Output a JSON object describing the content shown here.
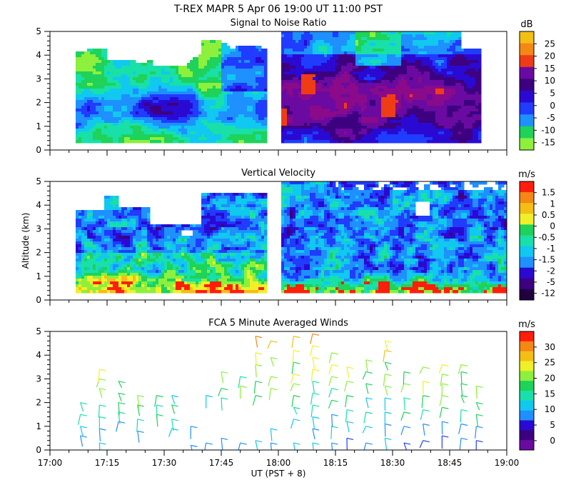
{
  "figure": {
    "title": "T-REX  MAPR  5 Apr 06  19:00 UT  11:00  PST",
    "xlabel": "UT  (PST + 8)",
    "ylabel": "Altitude (km)"
  },
  "colors": {
    "scale": [
      "#6a0aa0",
      "#3d0080",
      "#2a0ad2",
      "#1f3cff",
      "#1e90ff",
      "#10c8f0",
      "#18e0a8",
      "#1ed25a",
      "#8cf03c",
      "#f0f028",
      "#f5be14",
      "#f58714",
      "#f03c14",
      "#ff1e0a",
      "#ffffff"
    ]
  },
  "chart_data": [
    {
      "id": "snr",
      "type": "heatmap",
      "title": "Signal to Noise Ratio",
      "unit": "dB",
      "colorbar_ticks": [
        "25",
        "20",
        "15",
        "10",
        "5",
        "0",
        "-5",
        "-10",
        "-15"
      ],
      "colorbar_colors": [
        "#f5be14",
        "#f58714",
        "#f03c14",
        "#6a0aa0",
        "#3d0080",
        "#2a0ad2",
        "#1f3cff",
        "#1e90ff",
        "#1ed25a",
        "#8cf03c"
      ],
      "x_ticks": [
        "17:00",
        "17:15",
        "17:30",
        "17:45",
        "18:00",
        "18:15",
        "18:30",
        "18:45",
        "19:00"
      ],
      "xlim": [
        0,
        120
      ],
      "ylim": [
        0,
        5
      ],
      "y_ticks": [
        "0",
        "1",
        "2",
        "3",
        "4",
        "5"
      ],
      "data_gap_minutes": [
        57,
        61
      ],
      "data_start_minutes": 7,
      "data_end_minutes": 113
    },
    {
      "id": "vvel",
      "type": "heatmap",
      "title": "Vertical Velocity",
      "unit": "m/s",
      "colorbar_ticks": [
        "1.5",
        "1",
        "0.5",
        "0",
        "-0.5",
        "-1",
        "-1.5",
        "-2",
        "-5",
        "-12"
      ],
      "colorbar_colors": [
        "#ff1e0a",
        "#f58714",
        "#f5be14",
        "#f0f028",
        "#1ed25a",
        "#18e0a8",
        "#10c8f0",
        "#1e90ff",
        "#2a0ad2",
        "#3d0080",
        "#200040"
      ],
      "x_ticks": [
        "17:00",
        "17:15",
        "17:30",
        "17:45",
        "18:00",
        "18:15",
        "18:30",
        "18:45",
        "19:00"
      ],
      "xlim": [
        0,
        120
      ],
      "ylim": [
        0,
        5
      ],
      "y_ticks": [
        "0",
        "1",
        "2",
        "3",
        "4",
        "5"
      ],
      "data_gap_minutes": [
        57,
        61
      ],
      "data_start_minutes": 7,
      "data_end_minutes": 120
    },
    {
      "id": "winds",
      "type": "scatter",
      "title": "FCA 5 Minute Averaged Winds",
      "unit": "m/s",
      "colorbar_ticks": [
        "30",
        "25",
        "20",
        "15",
        "10",
        "5",
        "0"
      ],
      "colorbar_colors": [
        "#ff1e0a",
        "#f58714",
        "#f5be14",
        "#f0f028",
        "#8cf03c",
        "#1ed25a",
        "#18e0a8",
        "#10c8f0",
        "#1e90ff",
        "#2a0ad2",
        "#3d0080",
        "#6a0aa0"
      ],
      "x_ticks": [
        "17:00",
        "17:15",
        "17:30",
        "17:45",
        "18:00",
        "18:15",
        "18:30",
        "18:45",
        "19:00"
      ],
      "xlim": [
        0,
        120
      ],
      "ylim": [
        0,
        5
      ],
      "y_ticks": [
        "0",
        "1",
        "2",
        "3",
        "4",
        "5"
      ],
      "columns": [
        {
          "t": 8,
          "levels": [
            0.6,
            1.0,
            1.5,
            2.0
          ]
        },
        {
          "t": 13,
          "levels": [
            0.3,
            0.9,
            1.4,
            1.9,
            2.6,
            3.0,
            3.4
          ]
        },
        {
          "t": 18,
          "levels": [
            1.2,
            1.6,
            2.0,
            2.4,
            2.9
          ]
        },
        {
          "t": 23,
          "levels": [
            0.8,
            1.3,
            1.9,
            2.3
          ]
        },
        {
          "t": 28,
          "levels": [
            1.5,
            1.9,
            2.3
          ]
        },
        {
          "t": 32,
          "levels": [
            0.9,
            1.3,
            1.9,
            2.3
          ]
        },
        {
          "t": 37,
          "levels": [
            0.2,
            1.0
          ]
        },
        {
          "t": 41,
          "levels": [
            0.3,
            2.3
          ]
        },
        {
          "t": 45,
          "levels": [
            0.5,
            2.2,
            2.6,
            3.3
          ]
        },
        {
          "t": 50,
          "levels": [
            0.3,
            2.7,
            3.1
          ]
        },
        {
          "t": 54,
          "levels": [
            0.4,
            2.3,
            2.9,
            3.6,
            4.1,
            4.8
          ]
        },
        {
          "t": 58,
          "levels": [
            0.3,
            0.9,
            2.6,
            3.1,
            3.9,
            4.6
          ]
        },
        {
          "t": 64,
          "levels": [
            0.3,
            1.3,
            1.8,
            2.3,
            2.8,
            3.2,
            3.7,
            4.2,
            4.8
          ]
        },
        {
          "t": 69,
          "levels": [
            0.3,
            0.9,
            1.4,
            1.9,
            2.4,
            2.9,
            3.4,
            3.9,
            4.4,
            4.9
          ]
        },
        {
          "t": 74,
          "levels": [
            0.3,
            1.0,
            1.5,
            2.1,
            2.6,
            3.1,
            3.6,
            4.1
          ]
        },
        {
          "t": 78,
          "levels": [
            0.5,
            1.2,
            1.7,
            2.3,
            2.9,
            3.5
          ]
        },
        {
          "t": 83,
          "levels": [
            0.3,
            1.0,
            1.6,
            2.2,
            2.8,
            3.3,
            3.8
          ]
        },
        {
          "t": 88,
          "levels": [
            0.5,
            1.1,
            1.6,
            2.2,
            2.7,
            3.2,
            3.7,
            4.2,
            4.6
          ]
        },
        {
          "t": 93,
          "levels": [
            0.3,
            1.0,
            1.6,
            2.2,
            2.8,
            3.3
          ]
        },
        {
          "t": 98,
          "levels": [
            0.4,
            1.1,
            1.7,
            2.3,
            2.9,
            3.5
          ]
        },
        {
          "t": 103,
          "levels": [
            0.6,
            1.2,
            1.8,
            2.3,
            2.8,
            3.2,
            3.6
          ]
        },
        {
          "t": 108,
          "levels": [
            0.5,
            1.1,
            1.7,
            2.3,
            2.8,
            3.3,
            3.6
          ]
        },
        {
          "t": 112,
          "levels": [
            0.4,
            1.0,
            1.5,
            2.0,
            2.7
          ]
        }
      ]
    }
  ]
}
